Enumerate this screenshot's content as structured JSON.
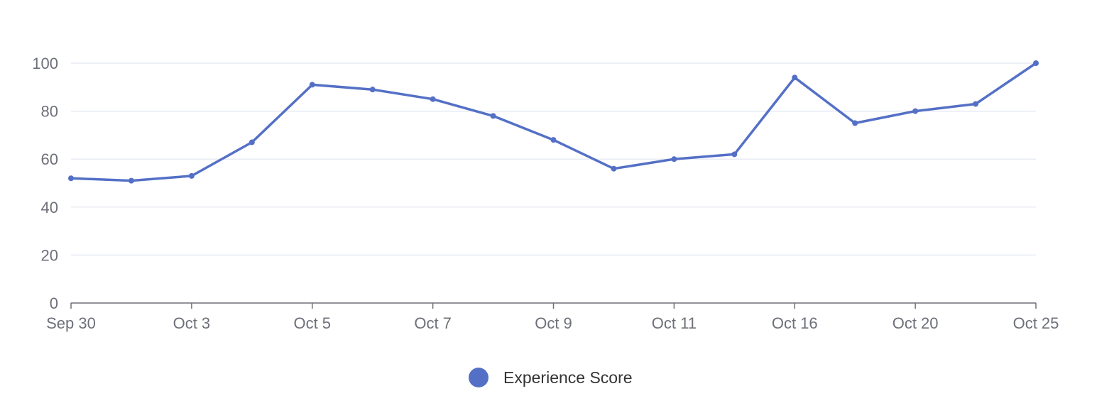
{
  "chart_data": {
    "type": "line",
    "title": "",
    "xlabel": "",
    "ylabel": "",
    "ylim": [
      0,
      100
    ],
    "yticks": [
      0,
      20,
      40,
      60,
      80,
      100
    ],
    "grid": "horizontal",
    "legend_placement": "bottom-center",
    "x_tick_labels": [
      "Sep 30",
      "Oct 3",
      "Oct 5",
      "Oct 7",
      "Oct 9",
      "Oct 11",
      "Oct 16",
      "Oct 20",
      "Oct 25"
    ],
    "x_tick_step": 2,
    "series": [
      {
        "name": "Experience Score",
        "color": "#5470c6",
        "values": [
          52,
          51,
          53,
          67,
          91,
          89,
          85,
          78,
          68,
          56,
          60,
          62,
          94,
          75,
          80,
          83,
          100
        ]
      }
    ]
  },
  "colors": {
    "axis": "#6e7079",
    "grid": "#e0e6f1",
    "line": "#5470c6"
  }
}
